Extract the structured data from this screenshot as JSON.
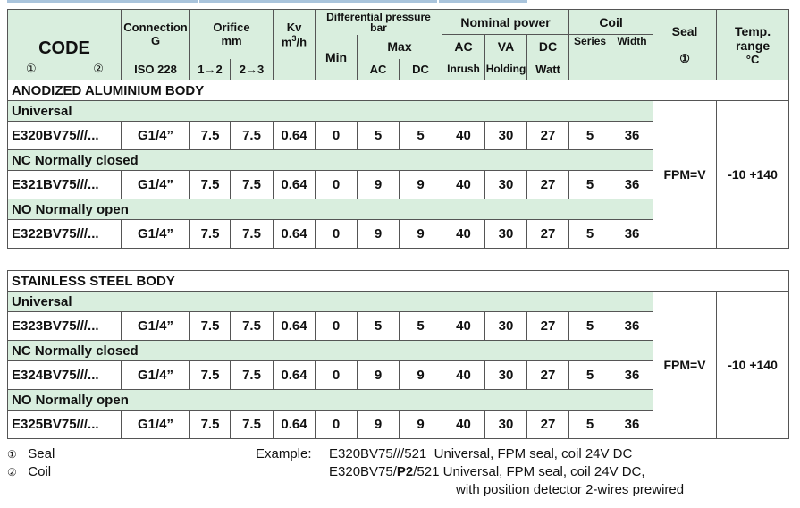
{
  "header": {
    "code": "CODE",
    "code_mark1": "①",
    "code_mark2": "②",
    "connection": "Connection",
    "connection_g": "G",
    "connection_std": "ISO 228",
    "orifice": "Orifice",
    "orifice_unit": "mm",
    "orifice_12": "1→2",
    "orifice_23": "2→3",
    "kv": "Kv",
    "kv_unit": "m³/h",
    "diff_pressure": "Differential pressure",
    "diff_unit": "bar",
    "min": "Min",
    "max": "Max",
    "max_ac": "AC",
    "max_dc": "DC",
    "nominal_power": "Nominal power",
    "np_ac": "AC",
    "np_va": "VA",
    "np_dc": "DC",
    "np_inrush": "Inrush",
    "np_holding": "Holding",
    "np_watt": "Watt",
    "coil": "Coil",
    "coil_series": "Series",
    "coil_width": "Width",
    "seal": "Seal",
    "seal_mark": "①",
    "temp": "Temp.",
    "temp_range": "range",
    "temp_unit": "°C"
  },
  "sections": [
    {
      "title": "ANODIZED ALUMINIUM BODY",
      "seal": "FPM=V",
      "temp": "-10 +140",
      "groups": [
        {
          "label": "Universal",
          "row": [
            "E320BV75///...",
            "G1/4”",
            "7.5",
            "7.5",
            "0.64",
            "0",
            "5",
            "5",
            "40",
            "30",
            "27",
            "5",
            "36"
          ]
        },
        {
          "label": "NC  Normally closed",
          "row": [
            "E321BV75///...",
            "G1/4”",
            "7.5",
            "7.5",
            "0.64",
            "0",
            "9",
            "9",
            "40",
            "30",
            "27",
            "5",
            "36"
          ]
        },
        {
          "label": "NO  Normally open",
          "row": [
            "E322BV75///...",
            "G1/4”",
            "7.5",
            "7.5",
            "0.64",
            "0",
            "9",
            "9",
            "40",
            "30",
            "27",
            "5",
            "36"
          ]
        }
      ]
    },
    {
      "title": "STAINLESS STEEL BODY",
      "seal": "FPM=V",
      "temp": "-10 +140",
      "groups": [
        {
          "label": "Universal",
          "row": [
            "E323BV75///...",
            "G1/4”",
            "7.5",
            "7.5",
            "0.64",
            "0",
            "5",
            "5",
            "40",
            "30",
            "27",
            "5",
            "36"
          ]
        },
        {
          "label": "NC  Normally closed",
          "row": [
            "E324BV75///...",
            "G1/4”",
            "7.5",
            "7.5",
            "0.64",
            "0",
            "9",
            "9",
            "40",
            "30",
            "27",
            "5",
            "36"
          ]
        },
        {
          "label": "NO  Normally open",
          "row": [
            "E325BV75///...",
            "G1/4”",
            "7.5",
            "7.5",
            "0.64",
            "0",
            "9",
            "9",
            "40",
            "30",
            "27",
            "5",
            "36"
          ]
        }
      ]
    }
  ],
  "footnotes": {
    "mark1": "①",
    "label1": "Seal",
    "mark2": "②",
    "label2": "Coil",
    "example_label": "Example:",
    "ex1_code": "E320BV75///521",
    "ex1_desc": "Universal, FPM seal, coil 24V DC",
    "ex2_code_a": "E320BV75/",
    "ex2_code_b": "P2",
    "ex2_code_c": "/521",
    "ex2_desc": "Universal, FPM seal, coil 24V DC,",
    "ex2_desc2": "with position detector 2-wires prewired"
  },
  "colors": {
    "header_bg": "#d9eede",
    "top_bar": "#a9c4dc"
  }
}
